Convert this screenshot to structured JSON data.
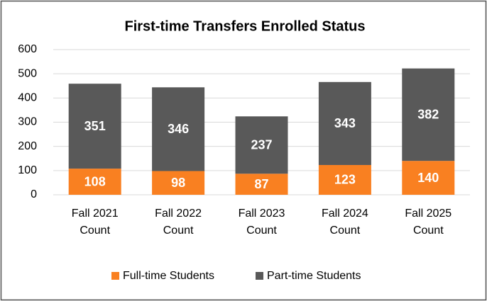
{
  "chart_data": {
    "type": "stacked_bar",
    "title": "First-time Transfers Enrolled Status",
    "categories": [
      "Fall 2021 Count",
      "Fall 2022 Count",
      "Fall 2023 Count",
      "Fall 2024 Count",
      "Fall 2025 Count"
    ],
    "series": [
      {
        "name": "Full-time Students",
        "color": "#f98021",
        "values": [
          108,
          98,
          87,
          123,
          140
        ]
      },
      {
        "name": "Part-time Students",
        "color": "#595959",
        "values": [
          351,
          346,
          237,
          343,
          382
        ]
      }
    ],
    "ylim": [
      0,
      600
    ],
    "yticks": [
      0,
      100,
      200,
      300,
      400,
      500,
      600
    ],
    "grid": true,
    "legend": "bottom"
  }
}
